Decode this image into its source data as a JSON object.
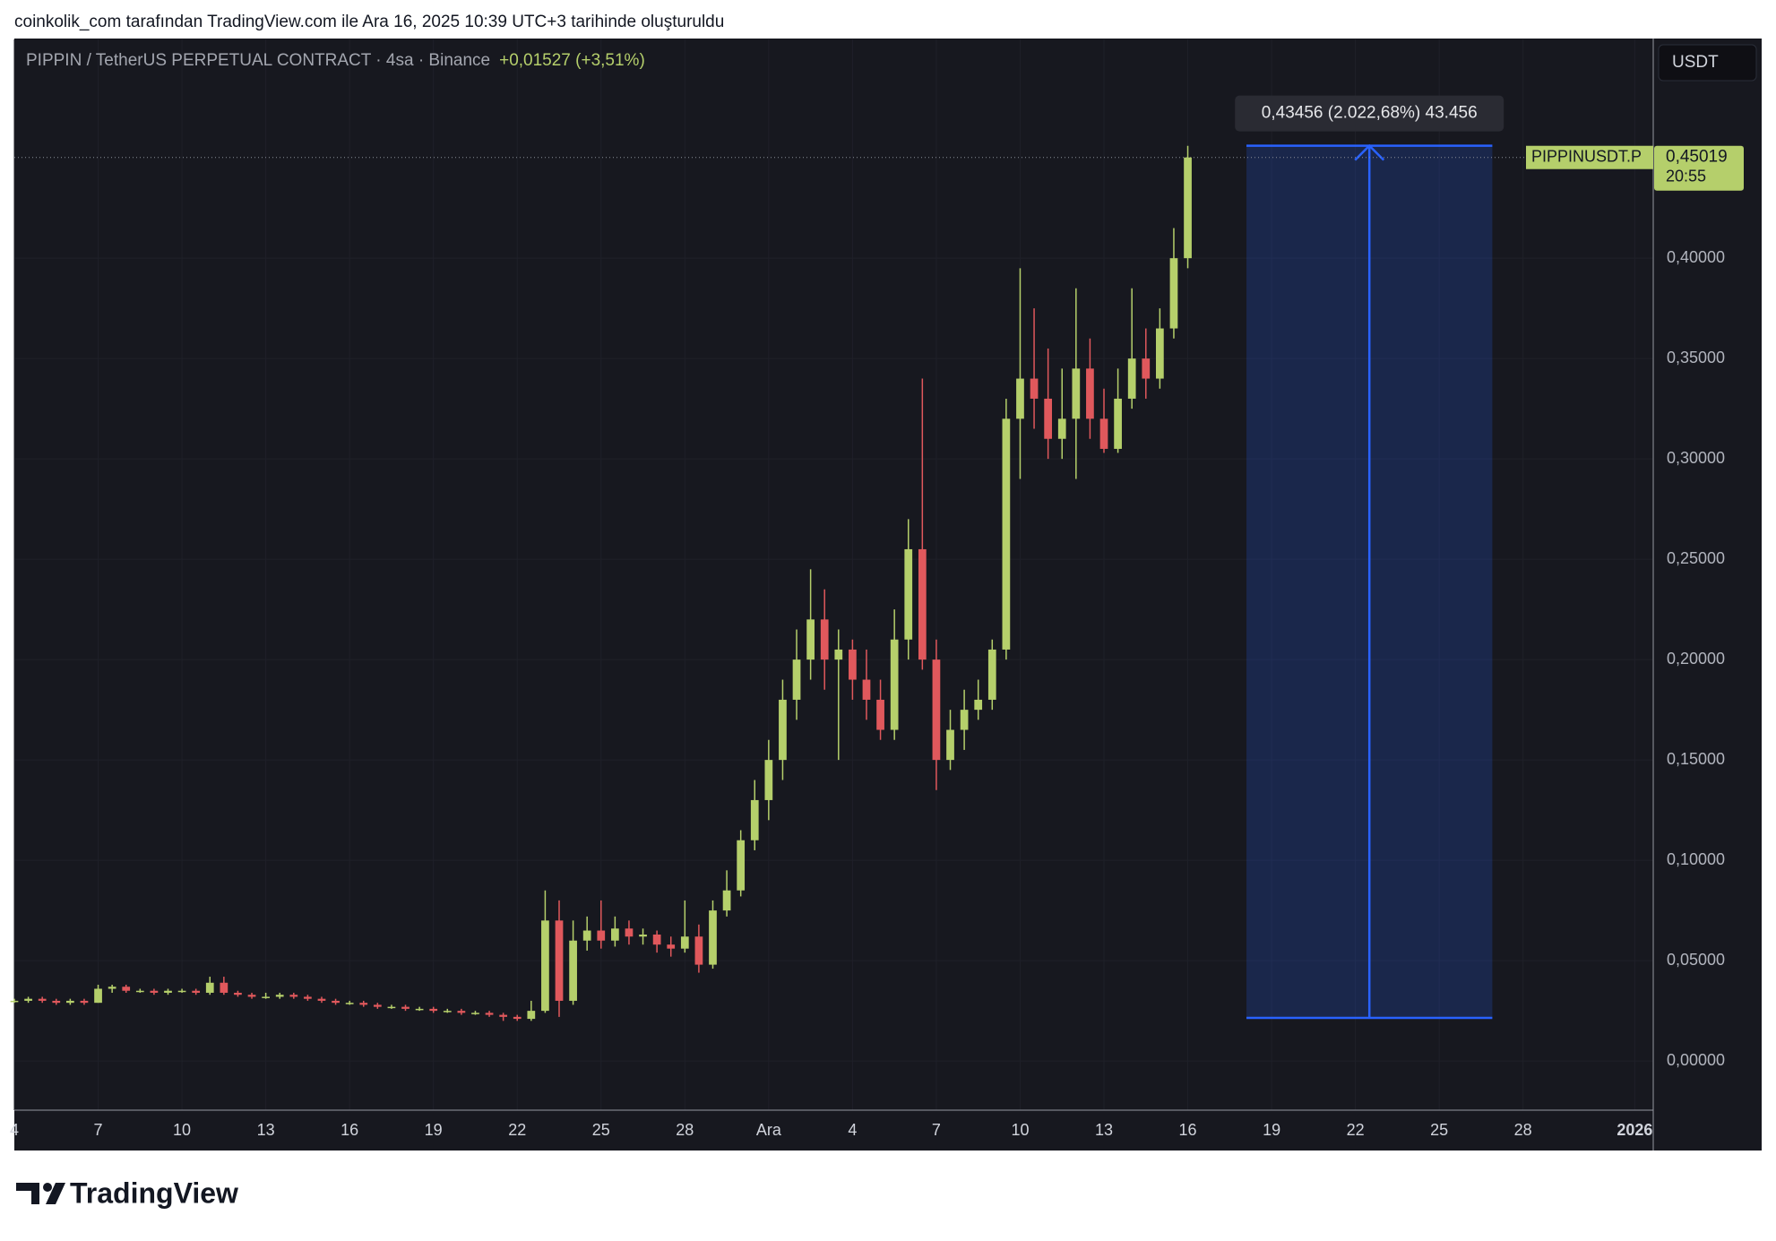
{
  "header": "coinkolik_com tarafından TradingView.com ile Ara 16, 2025 10:39 UTC+3 tarihinde oluşturuldu",
  "brand": "TradingView",
  "chart_data": {
    "type": "candlestick",
    "title": "PIPPIN / TetherUS PERPETUAL CONTRACT · 4sa · Binance",
    "change": "+0,01527 (+3,51%)",
    "currency": "USDT",
    "symbol": "PIPPINUSDT.P",
    "last_price": {
      "value": 0.45019,
      "label": "0,45019"
    },
    "countdown": "20:55",
    "up_color": "#b5cf6b",
    "down_color": "#e0585c",
    "x": [
      0,
      0.5,
      1,
      1.5,
      2,
      2.5,
      3,
      3.5,
      4,
      4.5,
      5,
      5.5,
      6,
      6.5,
      7,
      7.5,
      8,
      8.5,
      9,
      9.5,
      10,
      10.5,
      11,
      11.5,
      12,
      12.5,
      13,
      13.5,
      14,
      14.5,
      15,
      15.5,
      16,
      16.5,
      17,
      17.5,
      18,
      18.5,
      19,
      19.5,
      20,
      20.5,
      21,
      21.5,
      22,
      22.5,
      23,
      23.5,
      24,
      24.5,
      25,
      25.5,
      26,
      26.5,
      27,
      27.5,
      28,
      28.5,
      29,
      29.5,
      30,
      30.5,
      31,
      31.5,
      32,
      32.5,
      33,
      33.5,
      34,
      34.5,
      35,
      35.5,
      36,
      36.5,
      37,
      37.5,
      38,
      38.5,
      39,
      39.5,
      40,
      40.5,
      41,
      41.5,
      42
    ],
    "open": [
      0.03,
      0.03,
      0.031,
      0.03,
      0.029,
      0.03,
      0.029,
      0.036,
      0.037,
      0.035,
      0.035,
      0.034,
      0.035,
      0.035,
      0.034,
      0.039,
      0.034,
      0.033,
      0.032,
      0.032,
      0.033,
      0.032,
      0.031,
      0.03,
      0.029,
      0.029,
      0.028,
      0.027,
      0.027,
      0.026,
      0.026,
      0.025,
      0.025,
      0.024,
      0.024,
      0.023,
      0.022,
      0.021,
      0.025,
      0.07,
      0.03,
      0.06,
      0.065,
      0.06,
      0.066,
      0.062,
      0.063,
      0.058,
      0.056,
      0.062,
      0.048,
      0.075,
      0.085,
      0.11,
      0.13,
      0.15,
      0.18,
      0.2,
      0.22,
      0.2,
      0.205,
      0.19,
      0.18,
      0.165,
      0.21,
      0.255,
      0.2,
      0.15,
      0.165,
      0.175,
      0.18,
      0.205,
      0.32,
      0.34,
      0.33,
      0.31,
      0.32,
      0.345,
      0.32,
      0.305,
      0.33,
      0.35,
      0.34,
      0.365,
      0.4
    ],
    "high": [
      0.031,
      0.032,
      0.032,
      0.031,
      0.031,
      0.031,
      0.038,
      0.038,
      0.038,
      0.036,
      0.036,
      0.036,
      0.036,
      0.036,
      0.042,
      0.042,
      0.035,
      0.034,
      0.034,
      0.034,
      0.034,
      0.033,
      0.032,
      0.031,
      0.03,
      0.03,
      0.029,
      0.028,
      0.028,
      0.027,
      0.027,
      0.026,
      0.026,
      0.025,
      0.025,
      0.024,
      0.023,
      0.03,
      0.085,
      0.08,
      0.07,
      0.072,
      0.08,
      0.072,
      0.07,
      0.066,
      0.065,
      0.062,
      0.08,
      0.068,
      0.08,
      0.095,
      0.115,
      0.14,
      0.16,
      0.19,
      0.215,
      0.245,
      0.235,
      0.215,
      0.21,
      0.205,
      0.19,
      0.225,
      0.27,
      0.34,
      0.21,
      0.175,
      0.185,
      0.19,
      0.21,
      0.33,
      0.395,
      0.375,
      0.355,
      0.345,
      0.385,
      0.36,
      0.335,
      0.345,
      0.385,
      0.365,
      0.375,
      0.415,
      0.456
    ],
    "low": [
      0.029,
      0.029,
      0.029,
      0.028,
      0.028,
      0.028,
      0.029,
      0.034,
      0.034,
      0.034,
      0.033,
      0.033,
      0.034,
      0.033,
      0.033,
      0.033,
      0.032,
      0.031,
      0.031,
      0.031,
      0.031,
      0.03,
      0.029,
      0.028,
      0.028,
      0.027,
      0.026,
      0.026,
      0.025,
      0.025,
      0.024,
      0.024,
      0.023,
      0.023,
      0.022,
      0.02,
      0.02,
      0.02,
      0.024,
      0.022,
      0.028,
      0.055,
      0.056,
      0.057,
      0.058,
      0.058,
      0.054,
      0.052,
      0.054,
      0.044,
      0.046,
      0.072,
      0.082,
      0.105,
      0.12,
      0.14,
      0.17,
      0.19,
      0.185,
      0.15,
      0.18,
      0.17,
      0.16,
      0.16,
      0.2,
      0.195,
      0.135,
      0.145,
      0.155,
      0.17,
      0.175,
      0.2,
      0.29,
      0.315,
      0.3,
      0.3,
      0.29,
      0.31,
      0.303,
      0.303,
      0.325,
      0.33,
      0.335,
      0.36,
      0.395
    ],
    "close": [
      0.03,
      0.031,
      0.03,
      0.029,
      0.03,
      0.029,
      0.036,
      0.037,
      0.035,
      0.035,
      0.034,
      0.035,
      0.035,
      0.034,
      0.039,
      0.034,
      0.033,
      0.032,
      0.032,
      0.033,
      0.032,
      0.031,
      0.03,
      0.029,
      0.029,
      0.028,
      0.027,
      0.027,
      0.026,
      0.026,
      0.025,
      0.025,
      0.024,
      0.024,
      0.023,
      0.022,
      0.021,
      0.025,
      0.07,
      0.03,
      0.06,
      0.065,
      0.06,
      0.066,
      0.062,
      0.063,
      0.058,
      0.056,
      0.062,
      0.048,
      0.075,
      0.085,
      0.11,
      0.13,
      0.15,
      0.18,
      0.2,
      0.22,
      0.2,
      0.205,
      0.19,
      0.18,
      0.165,
      0.21,
      0.255,
      0.2,
      0.15,
      0.165,
      0.175,
      0.18,
      0.205,
      0.32,
      0.34,
      0.33,
      0.31,
      0.32,
      0.345,
      0.32,
      0.305,
      0.33,
      0.35,
      0.34,
      0.365,
      0.4,
      0.45019
    ],
    "xlim": [
      0,
      58.66
    ],
    "xticks": [
      {
        "value": 0,
        "label": "4"
      },
      {
        "value": 3,
        "label": "7"
      },
      {
        "value": 6,
        "label": "10"
      },
      {
        "value": 9,
        "label": "13"
      },
      {
        "value": 12,
        "label": "16"
      },
      {
        "value": 15,
        "label": "19"
      },
      {
        "value": 18,
        "label": "22"
      },
      {
        "value": 21,
        "label": "25"
      },
      {
        "value": 24,
        "label": "28"
      },
      {
        "value": 27,
        "label": "Ara"
      },
      {
        "value": 30,
        "label": "4"
      },
      {
        "value": 33,
        "label": "7"
      },
      {
        "value": 36,
        "label": "10"
      },
      {
        "value": 39,
        "label": "13"
      },
      {
        "value": 42,
        "label": "16"
      },
      {
        "value": 45,
        "label": "19"
      },
      {
        "value": 48,
        "label": "22"
      },
      {
        "value": 51,
        "label": "25"
      },
      {
        "value": 54,
        "label": "28"
      },
      {
        "value": 58,
        "label": "2026"
      }
    ],
    "ylim": [
      -0.0245,
      0.509
    ],
    "yticks": [
      {
        "value": 0,
        "label": "0,00000"
      },
      {
        "value": 0.05,
        "label": "0,05000"
      },
      {
        "value": 0.1,
        "label": "0,10000"
      },
      {
        "value": 0.15,
        "label": "0,15000"
      },
      {
        "value": 0.2,
        "label": "0,20000"
      },
      {
        "value": 0.25,
        "label": "0,25000"
      },
      {
        "value": 0.3,
        "label": "0,30000"
      },
      {
        "value": 0.35,
        "label": "0,35000"
      },
      {
        "value": 0.4,
        "label": "0,40000"
      }
    ],
    "grid": true,
    "measure": {
      "from": 0.02149,
      "to": 0.45605,
      "x_from": 44.1,
      "x_to": 52.9,
      "label": "0,43456 (2.022,68%) 43.456",
      "color": "#2962ff"
    }
  }
}
